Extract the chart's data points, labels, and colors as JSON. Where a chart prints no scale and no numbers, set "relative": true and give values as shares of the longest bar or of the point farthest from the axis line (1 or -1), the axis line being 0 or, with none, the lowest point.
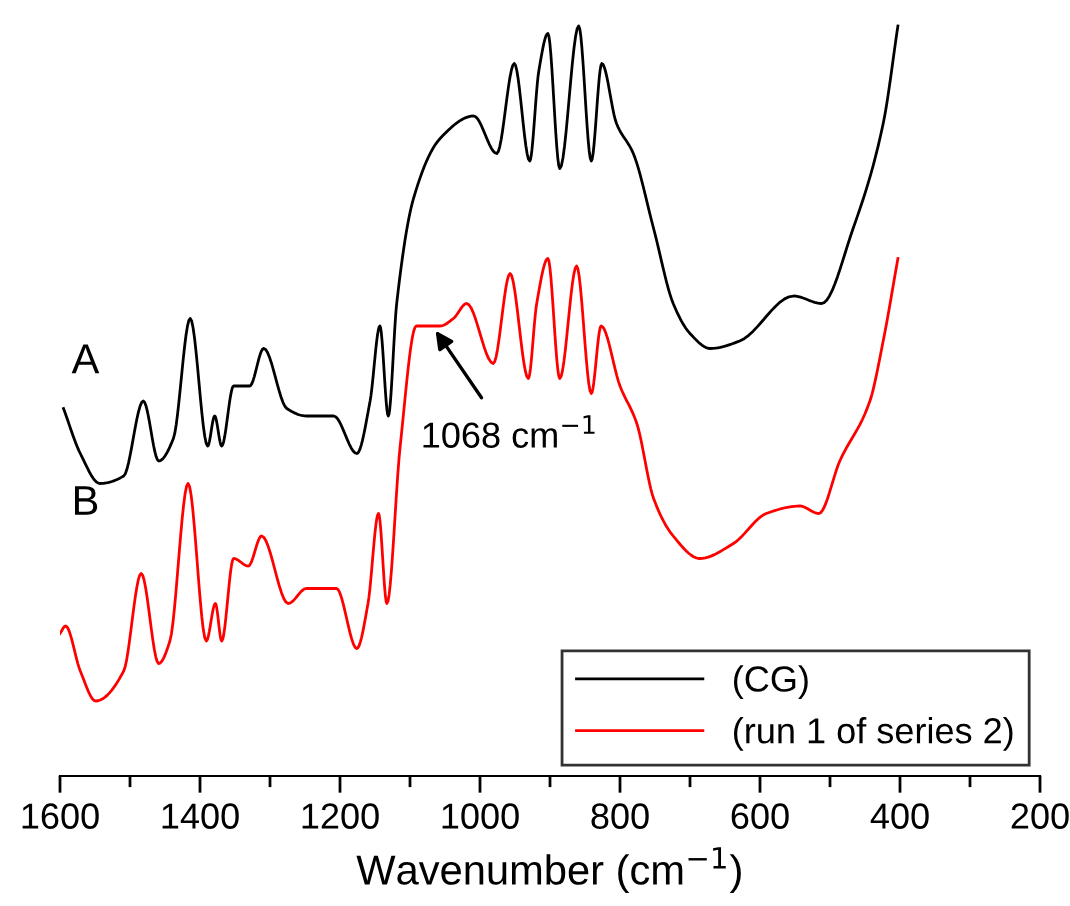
{
  "chart_data": {
    "type": "line",
    "relative": true,
    "xlabel": "Wavenumber (cm$^{−1}$)",
    "xlim": [
      1600,
      200
    ],
    "xticks": [
      1600,
      {
        "value": 1500,
        "label": null
      },
      1400,
      {
        "value": 1300,
        "label": null
      },
      1200,
      {
        "value": 1100,
        "label": null
      },
      1000,
      {
        "value": 900,
        "label": null
      },
      800,
      {
        "value": 700,
        "label": null
      },
      600,
      {
        "value": 500,
        "label": null
      },
      400,
      {
        "value": 300,
        "label": null
      },
      200
    ],
    "tick_labels": "x",
    "grid": false,
    "legend": "bottom right",
    "marker": "none",
    "line_style": "solid",
    "annotations": [
      "A",
      "B",
      {
        "text": "1068 cm$^{−1}$",
        "x": 1068,
        "y": 0.6
      }
    ],
    "series": [
      {
        "name": "(CG)",
        "color": "#000000",
        "x": [
          1595,
          1571,
          1543,
          1509,
          1481,
          1459,
          1438,
          1414,
          1389,
          1379,
          1369,
          1352,
          1329,
          1309,
          1276,
          1248,
          1209,
          1176,
          1157,
          1143,
          1131,
          1119,
          1095,
          1057,
          1009,
          976,
          951,
          929,
          916,
          903,
          886,
          859,
          841,
          826,
          805,
          781,
          752,
          724,
          700,
          671,
          629,
          552,
          512,
          467,
          424,
          403
        ],
        "values": [
          0.49,
          0.43,
          0.39,
          0.4,
          0.5,
          0.42,
          0.45,
          0.61,
          0.44,
          0.48,
          0.44,
          0.52,
          0.52,
          0.57,
          0.49,
          0.48,
          0.48,
          0.43,
          0.5,
          0.6,
          0.48,
          0.63,
          0.77,
          0.85,
          0.88,
          0.83,
          0.95,
          0.82,
          0.94,
          0.99,
          0.81,
          1.0,
          0.82,
          0.95,
          0.87,
          0.83,
          0.73,
          0.63,
          0.59,
          0.57,
          0.58,
          0.64,
          0.63,
          0.73,
          0.87,
          1.0
        ]
      },
      {
        "name": "(run 1 of series 2)",
        "color": "#ff0000",
        "x": [
          1600,
          1592,
          1571,
          1549,
          1509,
          1484,
          1459,
          1443,
          1417,
          1391,
          1378,
          1369,
          1352,
          1331,
          1312,
          1274,
          1248,
          1205,
          1176,
          1160,
          1145,
          1133,
          1114,
          1091,
          1057,
          1038,
          1019,
          981,
          957,
          931,
          919,
          903,
          886,
          862,
          841,
          827,
          800,
          776,
          752,
          724,
          686,
          638,
          591,
          543,
          516,
          486,
          443,
          424,
          403
        ],
        "values": [
          0.19,
          0.2,
          0.14,
          0.1,
          0.14,
          0.27,
          0.15,
          0.18,
          0.39,
          0.18,
          0.23,
          0.18,
          0.29,
          0.28,
          0.32,
          0.23,
          0.25,
          0.25,
          0.17,
          0.23,
          0.35,
          0.23,
          0.44,
          0.6,
          0.6,
          0.61,
          0.63,
          0.55,
          0.67,
          0.53,
          0.63,
          0.69,
          0.53,
          0.68,
          0.51,
          0.6,
          0.52,
          0.47,
          0.37,
          0.32,
          0.29,
          0.31,
          0.35,
          0.36,
          0.35,
          0.42,
          0.5,
          0.58,
          0.69
        ]
      }
    ]
  }
}
